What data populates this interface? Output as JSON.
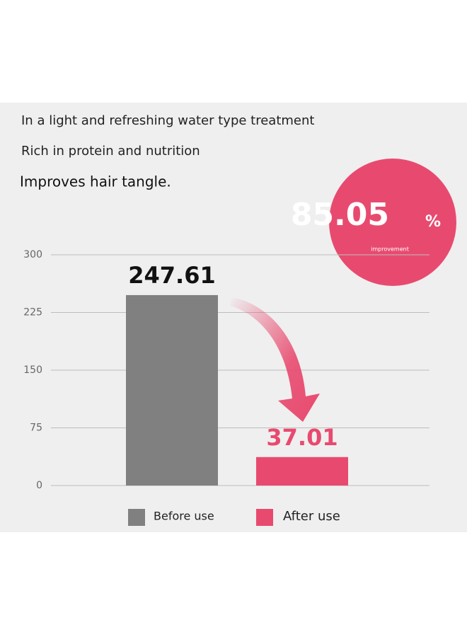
{
  "header": {
    "lines": [
      "In a light and refreshing water type treatment",
      "Rich in protein and nutrition",
      "Improves hair tangle."
    ]
  },
  "badge": {
    "value": 85.05,
    "unit": "%",
    "caption": "improvement"
  },
  "chart_data": {
    "type": "bar",
    "categories": [
      "Before use",
      "After use"
    ],
    "values": [
      247.61,
      37.01
    ],
    "colors": [
      "#808080",
      "#e84a6f"
    ],
    "label_colors": [
      "#111111",
      "#e84a6f"
    ],
    "ylim": [
      0,
      300
    ],
    "yticks": [
      0,
      75,
      150,
      225,
      300
    ],
    "grid": true,
    "legend": "bottom"
  }
}
